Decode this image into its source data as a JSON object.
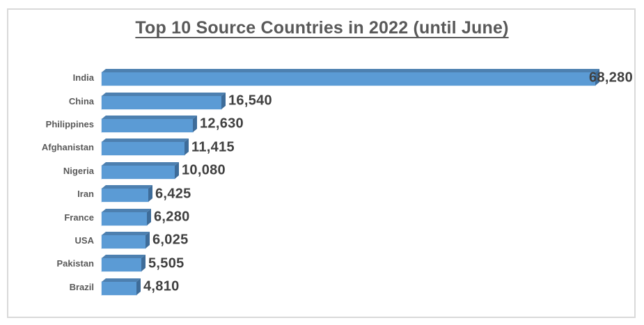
{
  "chart_data": {
    "type": "bar",
    "orientation": "horizontal",
    "title": "Top 10 Source Countries in 2022 (until June)",
    "categories": [
      "India",
      "China",
      "Philippines",
      "Afghanistan",
      "Nigeria",
      "Iran",
      "France",
      "USA",
      "Pakistan",
      "Brazil"
    ],
    "values": [
      68280,
      16540,
      12630,
      11415,
      10080,
      6425,
      6280,
      6025,
      5505,
      4810
    ],
    "value_labels": [
      "68,280",
      "16,540",
      "12,630",
      "11,415",
      "10,080",
      "6,425",
      "6,280",
      "6,025",
      "5,505",
      "4,810"
    ],
    "xlabel": "",
    "ylabel": "",
    "legend": "none",
    "grid": "off",
    "axis_lines": "none",
    "bar_style": "3d-bevel",
    "colors": {
      "bar_face": "#5b9bd5",
      "bar_top": "#4d80b0",
      "bar_side": "#3e6c99",
      "title_text": "#595959",
      "category_text": "#595959",
      "value_text": "#404040",
      "frame_border": "#d9d9d9",
      "background": "#ffffff"
    }
  }
}
